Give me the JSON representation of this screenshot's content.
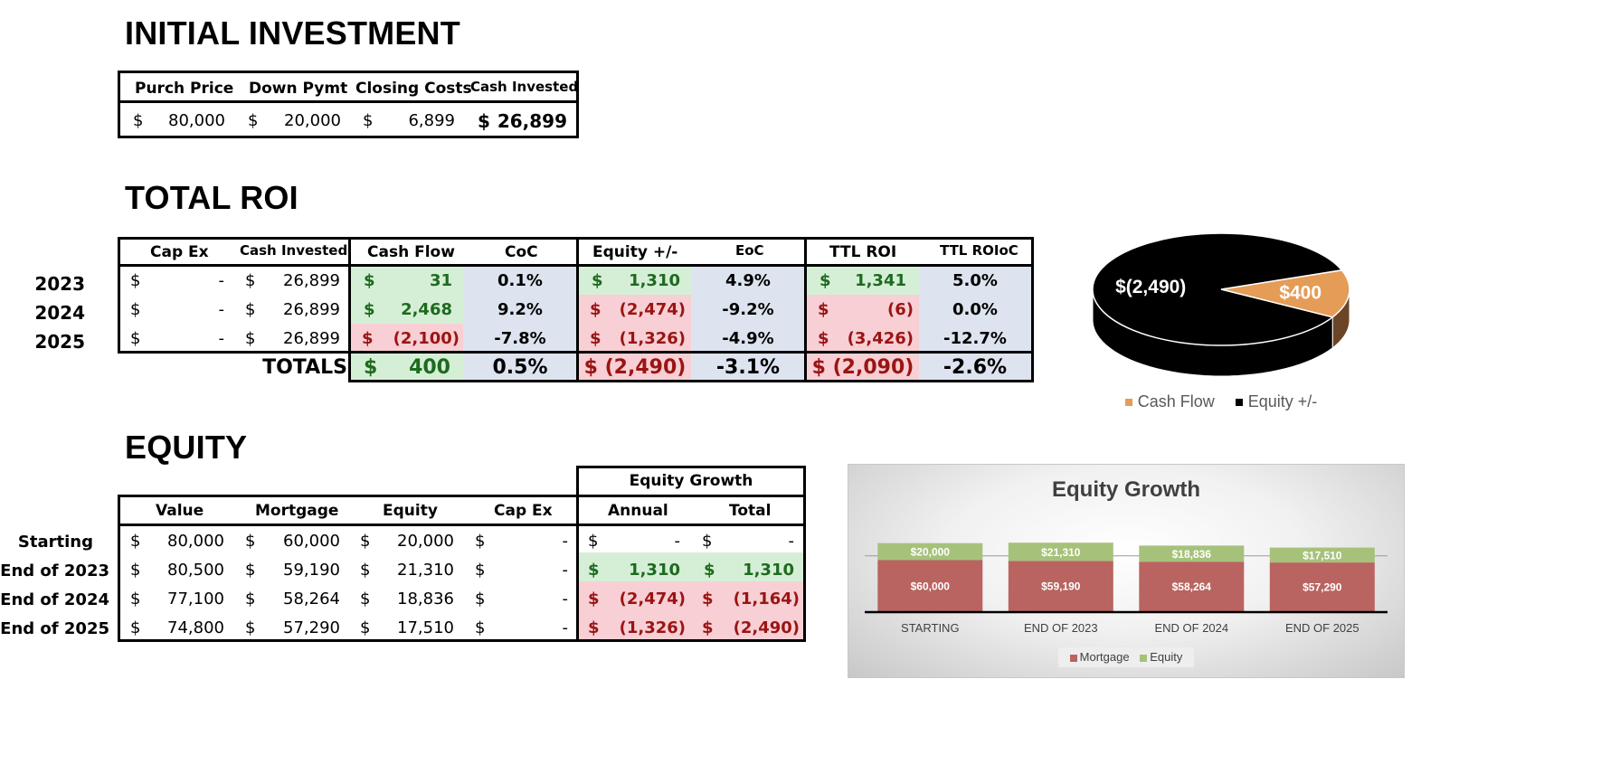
{
  "sections": {
    "initial_investment": "INITIAL INVESTMENT",
    "total_roi": "TOTAL ROI",
    "equity": "EQUITY"
  },
  "initial": {
    "headers": [
      "Purch Price",
      "Down Pymt",
      "Closing Costs",
      "Cash Invested"
    ],
    "values": [
      "80,000",
      "20,000",
      "6,899",
      "26,899"
    ],
    "currency": "$"
  },
  "roi": {
    "headers": [
      "Cap Ex",
      "Cash Invested",
      "Cash Flow",
      "CoC",
      "Equity +/-",
      "EoC",
      "TTL ROI",
      "TTL ROIoC"
    ],
    "rows": [
      {
        "year": "2023",
        "capex": "-",
        "cash_invested": "26,899",
        "cash_flow": "31",
        "coc": "0.1%",
        "equity": "1,310",
        "eoc": "4.9%",
        "ttl_roi": "1,341",
        "ttl_roioc": "5.0%"
      },
      {
        "year": "2024",
        "capex": "-",
        "cash_invested": "26,899",
        "cash_flow": "2,468",
        "coc": "9.2%",
        "equity": "(2,474)",
        "eoc": "-9.2%",
        "ttl_roi": "(6)",
        "ttl_roioc": "0.0%"
      },
      {
        "year": "2025",
        "capex": "-",
        "cash_invested": "26,899",
        "cash_flow": "(2,100)",
        "coc": "-7.8%",
        "equity": "(1,326)",
        "eoc": "-4.9%",
        "ttl_roi": "(3,426)",
        "ttl_roioc": "-12.7%"
      }
    ],
    "totals_label": "TOTALS",
    "totals": {
      "cash_flow": "400",
      "coc": "0.5%",
      "equity": "$ (2,490)",
      "eoc": "-3.1%",
      "ttl_roi": "$ (2,090)",
      "ttl_roioc": "-2.6%"
    }
  },
  "equity": {
    "group_header": "Equity Growth",
    "headers": [
      "Value",
      "Mortgage",
      "Equity",
      "Cap Ex",
      "Annual",
      "Total"
    ],
    "rows": [
      {
        "label": "Starting",
        "value": "80,000",
        "mortgage": "60,000",
        "equity": "20,000",
        "capex": "-",
        "annual": "-",
        "total": "-"
      },
      {
        "label": "End of 2023",
        "value": "80,500",
        "mortgage": "59,190",
        "equity": "21,310",
        "capex": "-",
        "annual": "1,310",
        "total": "1,310"
      },
      {
        "label": "End of 2024",
        "value": "77,100",
        "mortgage": "58,264",
        "equity": "18,836",
        "capex": "-",
        "annual": "(2,474)",
        "total": "(1,164)"
      },
      {
        "label": "End of 2025",
        "value": "74,800",
        "mortgage": "57,290",
        "equity": "17,510",
        "capex": "-",
        "annual": "(1,326)",
        "total": "(2,490)"
      }
    ]
  },
  "chart_data": [
    {
      "type": "pie",
      "labels": [
        "Cash Flow",
        "Equity +/-"
      ],
      "values": [
        400,
        -2490
      ],
      "data_labels": [
        "$400",
        "$(2,490)"
      ],
      "colors": [
        "#e59c57",
        "#000000"
      ],
      "legend": "bottom"
    },
    {
      "type": "bar",
      "stacked": true,
      "title": "Equity Growth",
      "categories": [
        "STARTING",
        "END OF 2023",
        "END OF 2024",
        "END OF 2025"
      ],
      "series": [
        {
          "name": "Mortgage",
          "values": [
            60000,
            59190,
            58264,
            57290
          ],
          "labels": [
            "$60,000",
            "$59,190",
            "$58,264",
            "$57,290"
          ],
          "color": "#b96460"
        },
        {
          "name": "Equity",
          "values": [
            20000,
            21310,
            18836,
            17510
          ],
          "labels": [
            "$20,000",
            "$21,310",
            "$18,836",
            "$17,510"
          ],
          "color": "#a6c27a"
        }
      ],
      "legend": "bottom"
    }
  ]
}
